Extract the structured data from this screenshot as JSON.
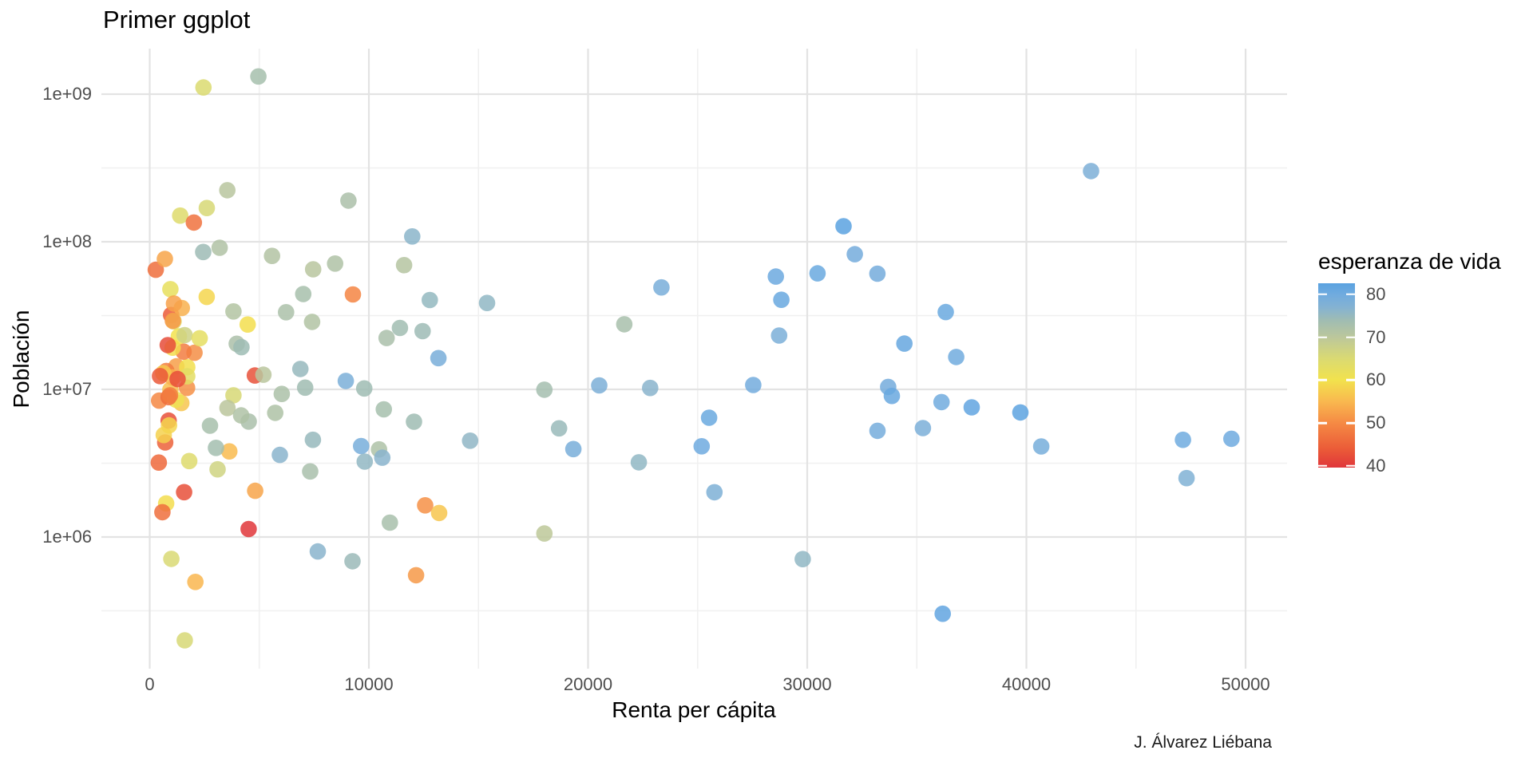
{
  "title": "Primer ggplot",
  "caption": "J. Álvarez Liébana",
  "chart_data": {
    "type": "scatter",
    "title": "Primer ggplot",
    "xlabel": "Renta per cápita",
    "ylabel": "Población",
    "caption": "J. Álvarez Liébana",
    "grid": true,
    "legend_position": "right",
    "x_axis": {
      "ticks": [
        0,
        10000,
        20000,
        30000,
        40000,
        50000
      ],
      "labels": [
        "0",
        "10000",
        "20000",
        "30000",
        "40000",
        "50000"
      ],
      "minor": [
        5000,
        15000,
        25000,
        35000,
        45000
      ],
      "range": [
        -2200,
        51560
      ]
    },
    "y_axis": {
      "scale": "log10",
      "ticks": [
        1000000,
        10000000,
        100000000,
        1000000000
      ],
      "labels": [
        "1e+06",
        "1e+07",
        "1e+08",
        "1e+09"
      ],
      "minor": [
        316228,
        3162278,
        31622777,
        316227766
      ],
      "range_log10": [
        5.11,
        9.31
      ]
    },
    "legend": {
      "title": "esperanza de vida",
      "tick_values": [
        40,
        50,
        60,
        70,
        80
      ],
      "tick_labels": [
        "40",
        "50",
        "60",
        "70",
        "80"
      ],
      "domain": [
        39.6,
        82.6
      ],
      "color_stops": [
        [
          39.6,
          "#e0363a"
        ],
        [
          44.0,
          "#eb5c38"
        ],
        [
          50.0,
          "#f58a44"
        ],
        [
          55.0,
          "#f9b84f"
        ],
        [
          60.0,
          "#f2e24d"
        ],
        [
          65.0,
          "#dada72"
        ],
        [
          70.0,
          "#bcc79b"
        ],
        [
          74.0,
          "#9fbcb3"
        ],
        [
          77.0,
          "#84b2d2"
        ],
        [
          80.0,
          "#70abdf"
        ],
        [
          82.6,
          "#5aa2e0"
        ]
      ]
    },
    "style": {
      "background": "#ffffff",
      "grid_major_color": "#e3e3e3",
      "grid_minor_color": "#f0f0f0",
      "tick_label_color": "#4d4d4d",
      "text_color": "#000000",
      "point_opacity": 0.85,
      "point_radius_px": 10.3
    },
    "points_format": [
      "renta_per_capita",
      "poblacion",
      "esperanza_de_vida"
    ],
    "points": [
      [
        975,
        31889923,
        43.8
      ],
      [
        5937,
        3600523,
        76.4
      ],
      [
        6223,
        33333216,
        72.3
      ],
      [
        4797,
        12420476,
        42.7
      ],
      [
        12779,
        40301927,
        75.3
      ],
      [
        34435,
        20434176,
        81.2
      ],
      [
        36126,
        8199783,
        79.8
      ],
      [
        29796,
        708573,
        75.6
      ],
      [
        1391,
        150448339,
        64.1
      ],
      [
        33693,
        10392226,
        79.4
      ],
      [
        1441,
        8078314,
        56.7
      ],
      [
        3822,
        9119152,
        65.5
      ],
      [
        7446,
        4552198,
        74.9
      ],
      [
        12570,
        1639131,
        50.7
      ],
      [
        9066,
        190010647,
        72.4
      ],
      [
        10681,
        7322858,
        73.0
      ],
      [
        1217,
        14326203,
        52.3
      ],
      [
        430,
        8390505,
        49.6
      ],
      [
        1714,
        14131858,
        59.7
      ],
      [
        2042,
        17696293,
        50.4
      ],
      [
        36319,
        33390141,
        80.7
      ],
      [
        706,
        4369038,
        44.7
      ],
      [
        1704,
        10238807,
        50.7
      ],
      [
        13172,
        16284741,
        78.6
      ],
      [
        4959,
        1318683096,
        73.0
      ],
      [
        7007,
        44227550,
        72.9
      ],
      [
        986,
        710960,
        65.2
      ],
      [
        278,
        64606759,
        46.5
      ],
      [
        3633,
        3800610,
        55.3
      ],
      [
        9645,
        4133884,
        78.8
      ],
      [
        1545,
        18013409,
        48.3
      ],
      [
        14619,
        4493312,
        75.7
      ],
      [
        8948,
        11416987,
        78.3
      ],
      [
        22833,
        10228744,
        76.5
      ],
      [
        35278,
        5468120,
        78.3
      ],
      [
        2082,
        496374,
        54.8
      ],
      [
        6025,
        9319622,
        72.2
      ],
      [
        6873,
        13755680,
        75.0
      ],
      [
        5581,
        80264543,
        71.3
      ],
      [
        5728,
        6939688,
        71.9
      ],
      [
        12154,
        551201,
        51.6
      ],
      [
        641,
        4906585,
        58.0
      ],
      [
        691,
        76511887,
        52.9
      ],
      [
        33207,
        5238460,
        79.3
      ],
      [
        30470,
        61083916,
        80.7
      ],
      [
        13206,
        1454867,
        56.7
      ],
      [
        752,
        1688359,
        59.4
      ],
      [
        32170,
        82400996,
        79.4
      ],
      [
        1328,
        22873338,
        60.0
      ],
      [
        27538,
        10706290,
        79.5
      ],
      [
        5186,
        12572928,
        70.3
      ],
      [
        942,
        9947814,
        56.0
      ],
      [
        579,
        1472041,
        46.4
      ],
      [
        1202,
        8502814,
        60.9
      ],
      [
        3548,
        7483763,
        70.2
      ],
      [
        39725,
        6980412,
        82.2
      ],
      [
        18009,
        9956108,
        73.3
      ],
      [
        36181,
        301931,
        81.8
      ],
      [
        2452,
        1110396331,
        64.7
      ],
      [
        3541,
        223547000,
        70.6
      ],
      [
        11606,
        69453570,
        71.0
      ],
      [
        4471,
        27499638,
        59.5
      ],
      [
        40676,
        4109086,
        78.9
      ],
      [
        25523,
        6426679,
        80.7
      ],
      [
        28570,
        58147733,
        80.5
      ],
      [
        7321,
        2780132,
        72.6
      ],
      [
        31656,
        127467972,
        82.6
      ],
      [
        4519,
        6053193,
        72.5
      ],
      [
        1463,
        35610177,
        54.1
      ],
      [
        1593,
        23301725,
        67.3
      ],
      [
        23348,
        49044790,
        78.6
      ],
      [
        47307,
        2505559,
        77.6
      ],
      [
        10461,
        3921278,
        72.0
      ],
      [
        1569,
        2012649,
        42.6
      ],
      [
        415,
        3193942,
        45.7
      ],
      [
        12057,
        6036914,
        74.0
      ],
      [
        1045,
        19167654,
        59.4
      ],
      [
        759,
        13327079,
        48.3
      ],
      [
        12452,
        24821286,
        74.2
      ],
      [
        1043,
        12031795,
        54.5
      ],
      [
        1803,
        3270065,
        64.2
      ],
      [
        10957,
        1250882,
        72.8
      ],
      [
        11978,
        108700891,
        76.2
      ],
      [
        3096,
        2874127,
        66.8
      ],
      [
        9254,
        684736,
        74.5
      ],
      [
        3820,
        33757175,
        71.2
      ],
      [
        824,
        19951656,
        42.1
      ],
      [
        944,
        47761980,
        62.1
      ],
      [
        4811,
        2055080,
        52.9
      ],
      [
        1091,
        28901790,
        63.8
      ],
      [
        36798,
        16570613,
        79.8
      ],
      [
        25185,
        4115771,
        80.2
      ],
      [
        2749,
        5675356,
        72.9
      ],
      [
        619,
        12894865,
        56.9
      ],
      [
        2014,
        135031164,
        46.9
      ],
      [
        49357,
        4627926,
        80.2
      ],
      [
        22316,
        3204897,
        75.6
      ],
      [
        2606,
        169270617,
        65.5
      ],
      [
        9809,
        3242173,
        75.5
      ],
      [
        4173,
        6667147,
        71.8
      ],
      [
        7409,
        28674757,
        71.4
      ],
      [
        3190,
        91077287,
        71.7
      ],
      [
        15390,
        38518241,
        75.6
      ],
      [
        20510,
        10642836,
        78.1
      ],
      [
        19329,
        3942491,
        78.7
      ],
      [
        7670,
        798094,
        76.4
      ],
      [
        10808,
        22276056,
        72.5
      ],
      [
        863,
        8860588,
        46.2
      ],
      [
        1598,
        199579,
        65.5
      ],
      [
        21655,
        27601038,
        72.8
      ],
      [
        1712,
        12267493,
        63.1
      ],
      [
        9787,
        10150265,
        74.0
      ],
      [
        863,
        6144562,
        42.6
      ],
      [
        47143,
        4553009,
        80.0
      ],
      [
        18678,
        5447502,
        74.7
      ],
      [
        25768,
        2009245,
        77.9
      ],
      [
        926,
        9118773,
        48.2
      ],
      [
        9270,
        43997828,
        49.3
      ],
      [
        28821,
        40448191,
        80.9
      ],
      [
        3970,
        20378239,
        72.4
      ],
      [
        2602,
        42292929,
        58.6
      ],
      [
        4513,
        1133066,
        39.6
      ],
      [
        33860,
        9031088,
        80.9
      ],
      [
        37506,
        7554661,
        81.7
      ],
      [
        4184,
        19314747,
        74.1
      ],
      [
        28718,
        23174294,
        78.4
      ],
      [
        1107,
        38139640,
        52.5
      ],
      [
        7458,
        65068149,
        70.6
      ],
      [
        883,
        5701579,
        58.4
      ],
      [
        18008,
        1056608,
        69.8
      ],
      [
        7093,
        10276158,
        73.9
      ],
      [
        8458,
        71158647,
        71.8
      ],
      [
        1056,
        29170398,
        51.5
      ],
      [
        33203,
        60776238,
        79.4
      ],
      [
        42952,
        301139947,
        78.2
      ],
      [
        10611,
        3447496,
        76.4
      ],
      [
        11416,
        26084662,
        73.7
      ],
      [
        2442,
        85262356,
        74.2
      ],
      [
        3025,
        4018332,
        73.4
      ],
      [
        2281,
        22211743,
        62.7
      ],
      [
        1271,
        11746035,
        42.4
      ],
      [
        469,
        12311143,
        43.5
      ]
    ]
  }
}
